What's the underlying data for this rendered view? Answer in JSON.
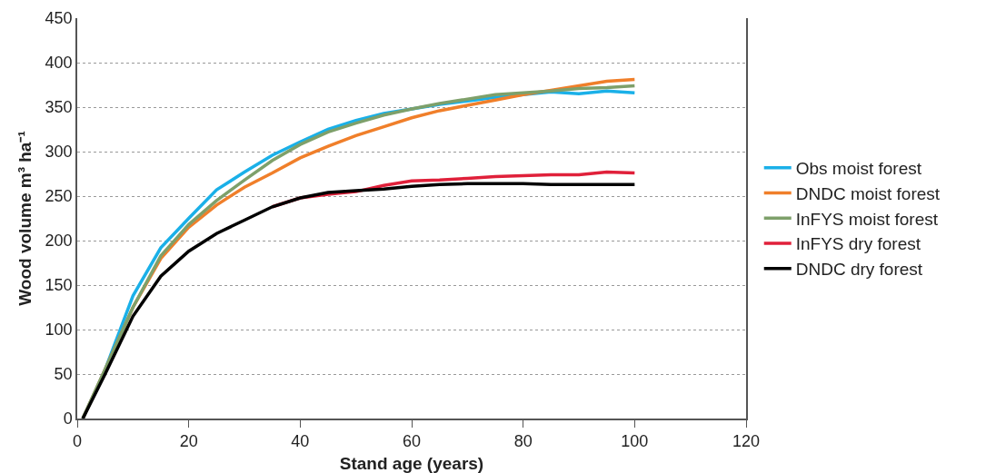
{
  "chart_data": {
    "type": "line",
    "xlabel": "Stand age (years)",
    "ylabel": "Wood volume m³ ha⁻¹",
    "x": [
      1,
      5,
      10,
      15,
      20,
      25,
      30,
      35,
      40,
      45,
      50,
      55,
      60,
      65,
      70,
      75,
      80,
      85,
      90,
      95,
      100
    ],
    "xlim": [
      0,
      120
    ],
    "xticks": [
      0,
      20,
      40,
      60,
      80,
      100,
      120
    ],
    "ylim": [
      0,
      450
    ],
    "yticks": [
      0,
      50,
      100,
      150,
      200,
      250,
      300,
      350,
      400,
      450
    ],
    "grid": "y",
    "legend": "right",
    "marker": "none",
    "line_style": "solid",
    "series": [
      {
        "name": "Obs moist forest",
        "color": "#1ab0e8",
        "values": [
          0,
          55,
          138,
          192,
          225,
          257,
          277,
          296,
          311,
          325,
          335,
          343,
          348,
          353,
          357,
          361,
          364,
          367,
          365,
          368,
          366
        ]
      },
      {
        "name": "DNDC moist forest",
        "color": "#f07f2a",
        "values": [
          0,
          55,
          125,
          180,
          215,
          240,
          260,
          276,
          293,
          306,
          318,
          328,
          338,
          346,
          352,
          358,
          364,
          369,
          374,
          379,
          381
        ]
      },
      {
        "name": "InFYS moist forest",
        "color": "#7ea06a",
        "values": [
          0,
          55,
          125,
          183,
          218,
          245,
          268,
          290,
          308,
          322,
          332,
          341,
          348,
          354,
          359,
          364,
          366,
          368,
          371,
          372,
          374
        ]
      },
      {
        "name": "InFYS dry forest",
        "color": "#e0203a",
        "values": [
          null,
          null,
          null,
          null,
          null,
          null,
          null,
          238,
          248,
          252,
          255,
          262,
          267,
          268,
          270,
          272,
          273,
          274,
          274,
          277,
          276
        ]
      },
      {
        "name": "DNDC dry forest",
        "color": "#000000",
        "values": [
          0,
          50,
          115,
          160,
          188,
          208,
          223,
          238,
          248,
          254,
          256,
          258,
          261,
          263,
          264,
          264,
          264,
          263,
          263,
          263,
          263
        ]
      }
    ]
  }
}
